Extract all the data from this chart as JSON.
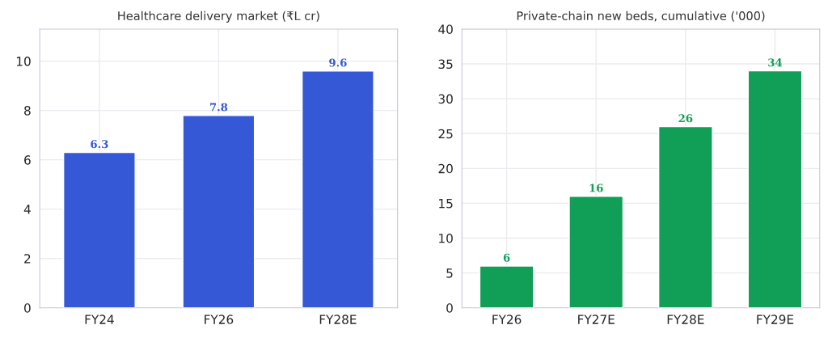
{
  "chart_data": [
    {
      "type": "bar",
      "title": "Healthcare delivery market (₹L cr)",
      "categories": [
        "FY24",
        "FY26",
        "FY28E"
      ],
      "values": [
        6.3,
        7.8,
        9.6
      ],
      "color": "#3558d6",
      "ylim": [
        0,
        11.3
      ],
      "yticks": [
        0,
        2,
        4,
        6,
        8,
        10
      ],
      "grid": true,
      "data_labels": true
    },
    {
      "type": "bar",
      "title": "Private-chain new beds, cumulative ('000)",
      "categories": [
        "FY26",
        "FY27E",
        "FY28E",
        "FY29E"
      ],
      "values": [
        6,
        16,
        26,
        34
      ],
      "color": "#119e57",
      "ylim": [
        0,
        40
      ],
      "yticks": [
        0,
        5,
        10,
        15,
        20,
        25,
        30,
        35,
        40
      ],
      "grid": true,
      "data_labels": true
    }
  ]
}
